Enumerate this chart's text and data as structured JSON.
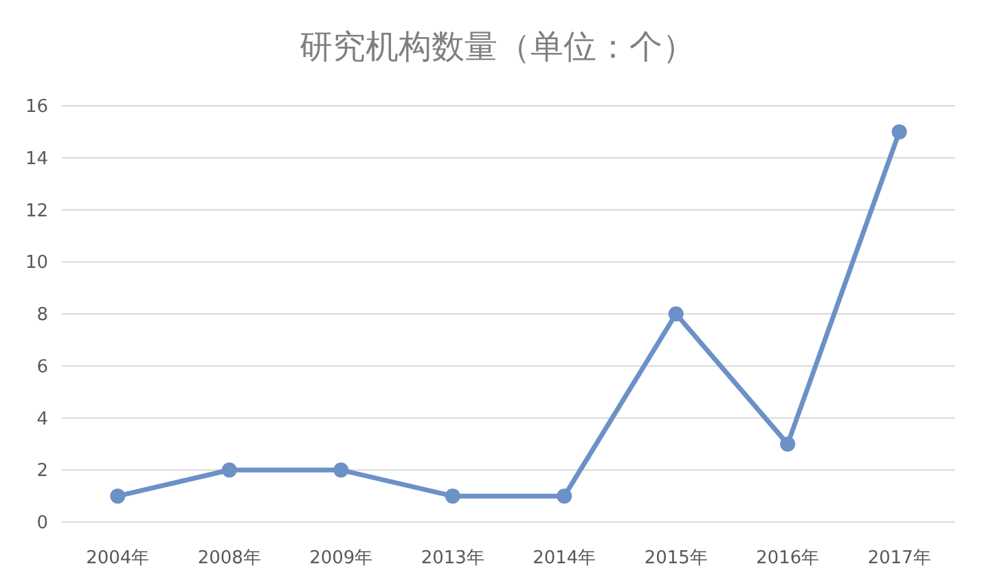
{
  "chart_data": {
    "type": "line",
    "title": "研究机构数量（单位：个）",
    "categories": [
      "2004年",
      "2008年",
      "2009年",
      "2013年",
      "2014年",
      "2015年",
      "2016年",
      "2017年"
    ],
    "series": [
      {
        "color": "#6b91c7",
        "values": [
          1,
          2,
          2,
          1,
          1,
          8,
          3,
          15
        ]
      }
    ],
    "ylim": [
      0,
      16
    ],
    "yticks": [
      0,
      2,
      4,
      6,
      8,
      10,
      12,
      14,
      16
    ],
    "grid": "y",
    "marker": "circle",
    "line_style": "solid"
  }
}
